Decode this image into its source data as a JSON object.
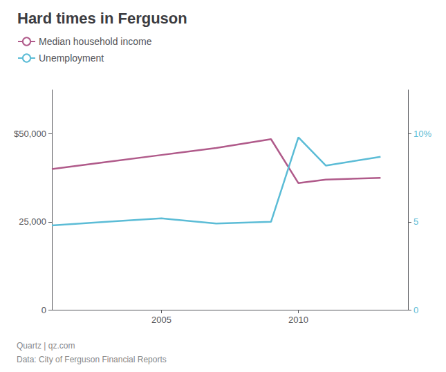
{
  "chart_data": {
    "type": "line",
    "title": "Hard times in Ferguson",
    "x": [
      2001,
      2003,
      2005,
      2007,
      2009,
      2010,
      2011,
      2013
    ],
    "series": [
      {
        "name": "Median household income",
        "color": "#b05a8a",
        "values": [
          40000,
          42000,
          44000,
          46000,
          48500,
          36000,
          37000,
          37500
        ]
      },
      {
        "name": "Unemployment",
        "color": "#5bbcd6",
        "axis": "y2",
        "values": [
          4.8,
          5.0,
          5.2,
          4.9,
          5.0,
          9.8,
          8.2,
          8.7
        ]
      }
    ],
    "xlim": [
      2001,
      2014
    ],
    "xticks": [
      2005,
      2010
    ],
    "ylim": [
      0,
      62500
    ],
    "yticks": [
      0,
      {
        "value": 25000,
        "label": "25,000"
      },
      {
        "value": 50000,
        "label": "$50,000"
      }
    ],
    "y2lim": [
      0,
      12.5
    ],
    "y2ticks": [
      0,
      5,
      {
        "value": 10,
        "label": "10%"
      }
    ],
    "grid": false,
    "legend": "upper left",
    "annotations": [
      "Quartz | qz.com",
      "Data: City of Ferguson Financial Reports"
    ]
  }
}
